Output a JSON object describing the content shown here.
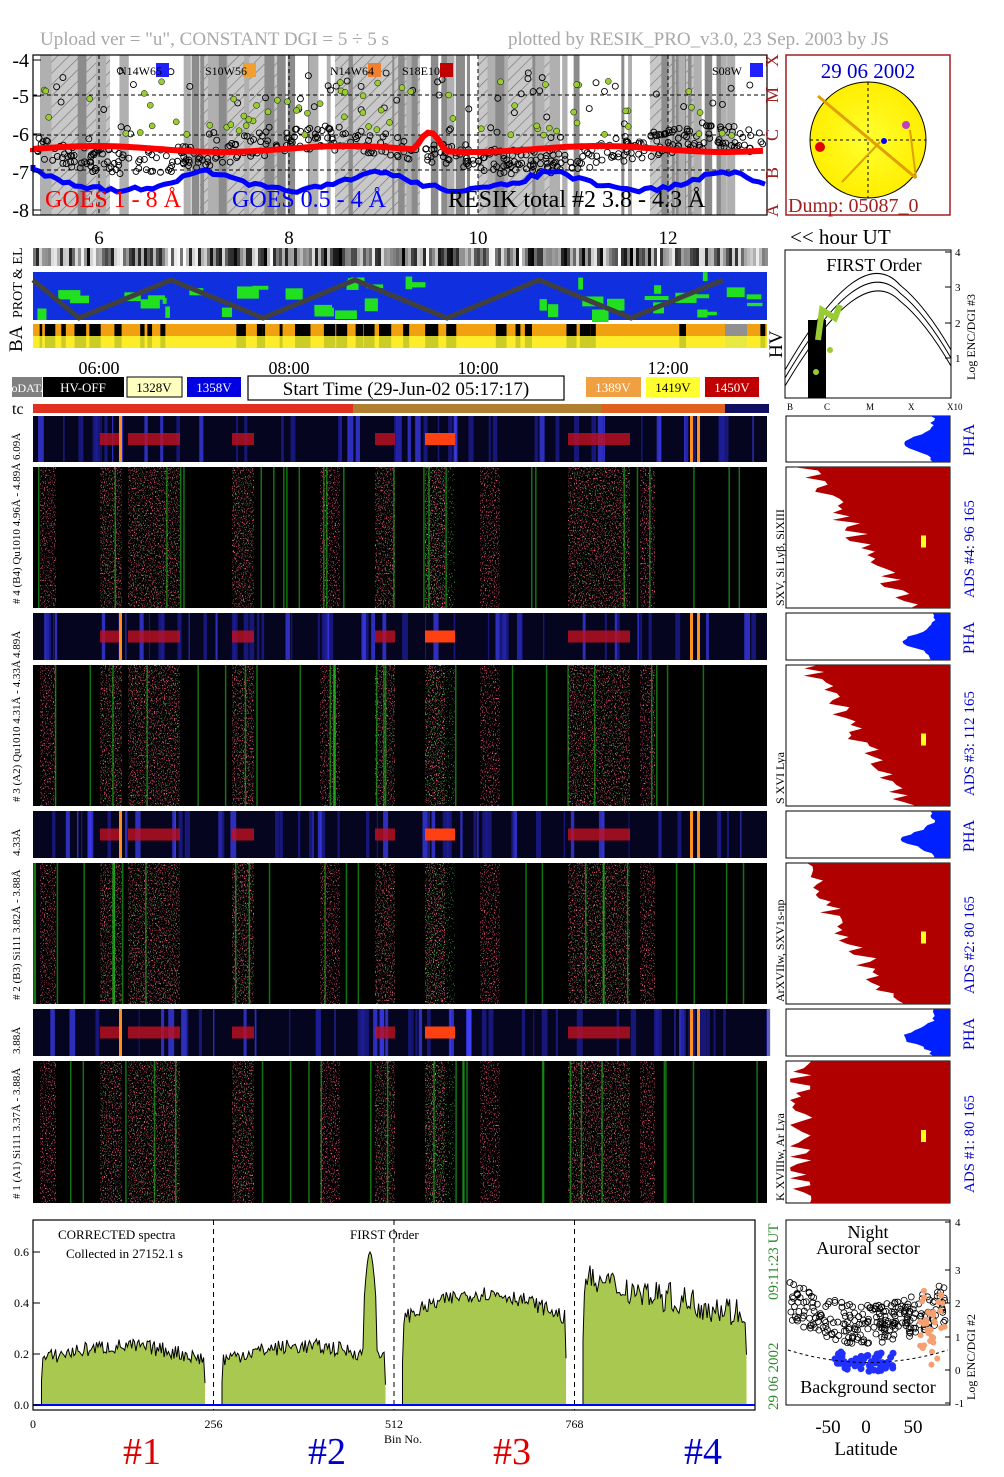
{
  "header": {
    "upload_text": "Upload ver = \"u\", CONSTANT  DGI =   5 ÷   5 s",
    "plotted_text": "plotted by RESIK_PRO_v3.0, 23 Sep. 2003 by JS"
  },
  "lightcurve": {
    "y_ticks": [
      "-4",
      "-5",
      "-6",
      "-7",
      "-8"
    ],
    "right_class_labels": [
      "X",
      "M",
      "C",
      "B",
      "A"
    ],
    "region_labels": [
      "N14W65",
      "S10W56",
      "N14W64",
      "S18E10",
      "S08W"
    ],
    "legend_goes_long": "GOES 1 - 8 Å",
    "legend_goes_short": "GOES 0.5 - 4 Å",
    "legend_resik": "RESIK total #2  3.8 - 4.3 Å",
    "x_ticks": [
      "6",
      "8",
      "10",
      "12"
    ],
    "hour_label": "<< hour UT",
    "colors": {
      "goes_long": "#ff0000",
      "goes_short": "#0000ff",
      "resik": "#000000",
      "rhessi": "#99cc33"
    }
  },
  "sun": {
    "date": "29 06 2002",
    "dump": "Dump: 05087_0"
  },
  "first_order_panel": {
    "title": "FIRST Order",
    "right_axis_label": "Log ENC/DGI #3",
    "y_ticks": [
      "1",
      "2",
      "3",
      "4"
    ],
    "x_ticks": [
      "B",
      "C",
      "M",
      "X",
      "X10"
    ],
    "hv_label": "HV"
  },
  "status_strips": {
    "prot_label": "PROT & EL",
    "ba_label": "BA",
    "time_ticks": [
      "06:00",
      "08:00",
      "10:00",
      "12:00"
    ],
    "legend_nodata": "noDATA",
    "legend_hvoff": "HV-OFF",
    "legend_1328": "1328V",
    "legend_1358": "1358V",
    "start_time": "Start Time (29-Jun-02 05:17:17)",
    "legend_1389": "1389V",
    "legend_1419": "1419V",
    "legend_1450": "1450V",
    "tc_label": "tc"
  },
  "channels": [
    {
      "pha_label": "6.09Å",
      "spec_label": "# 4 (B4) Qu1010 4.96Å - 4.89Å",
      "right_label": "PHA",
      "ads_label": "ADS #4:   96 165",
      "line_label": "SXV, Si Lyβ, SiXIII"
    },
    {
      "pha_label": "4.89Å",
      "spec_label": "# 3 (A2) Qu1010  4.31Å - 4.33Å",
      "right_label": "PHA",
      "ads_label": "ADS #3:   112 165",
      "line_label": "S XVI Lya"
    },
    {
      "pha_label": "4.33Å",
      "spec_label": "# 2 (B3) Si111  3.82Å - 3.88Å",
      "right_label": "PHA",
      "ads_label": "ADS #2:   80 165",
      "line_label": "ArXVIIw, SXV1s-np"
    },
    {
      "pha_label": "3.88Å",
      "spec_label": "# 1 (A1) Si111  3.37Å - 3.88Å",
      "right_label": "PHA",
      "ads_label": "ADS #1:   80 165",
      "line_label": "K XVIIIw, Ar Lya"
    }
  ],
  "spectrum": {
    "note1": "CORRECTED spectra",
    "note2": "Collected in 27152.1 s",
    "order": "FIRST Order",
    "y_ticks": [
      "0.0",
      "0.2",
      "0.4",
      "0.6"
    ],
    "x_ticks": [
      "0",
      "256",
      "512",
      "768"
    ],
    "xlabel": "Bin No.",
    "date_vertical": "29 06 2002",
    "time_vertical": "09:11:23 UT",
    "channel_labels": [
      "#1",
      "#2",
      "#3",
      "#4"
    ],
    "channel_colors": [
      "#dd0000",
      "#0000cc",
      "#dd0000",
      "#0000cc"
    ]
  },
  "latitude_panel": {
    "title1": "Night",
    "title2": "Auroral sector",
    "bottom": "Background sector",
    "xlabel": "Latitude",
    "x_ticks": [
      "-50",
      "0",
      "50"
    ],
    "y_ticks": [
      "-1",
      "0",
      "1",
      "2",
      "3",
      "4"
    ],
    "right_axis_label": "Log ENC/DGI #2"
  }
}
